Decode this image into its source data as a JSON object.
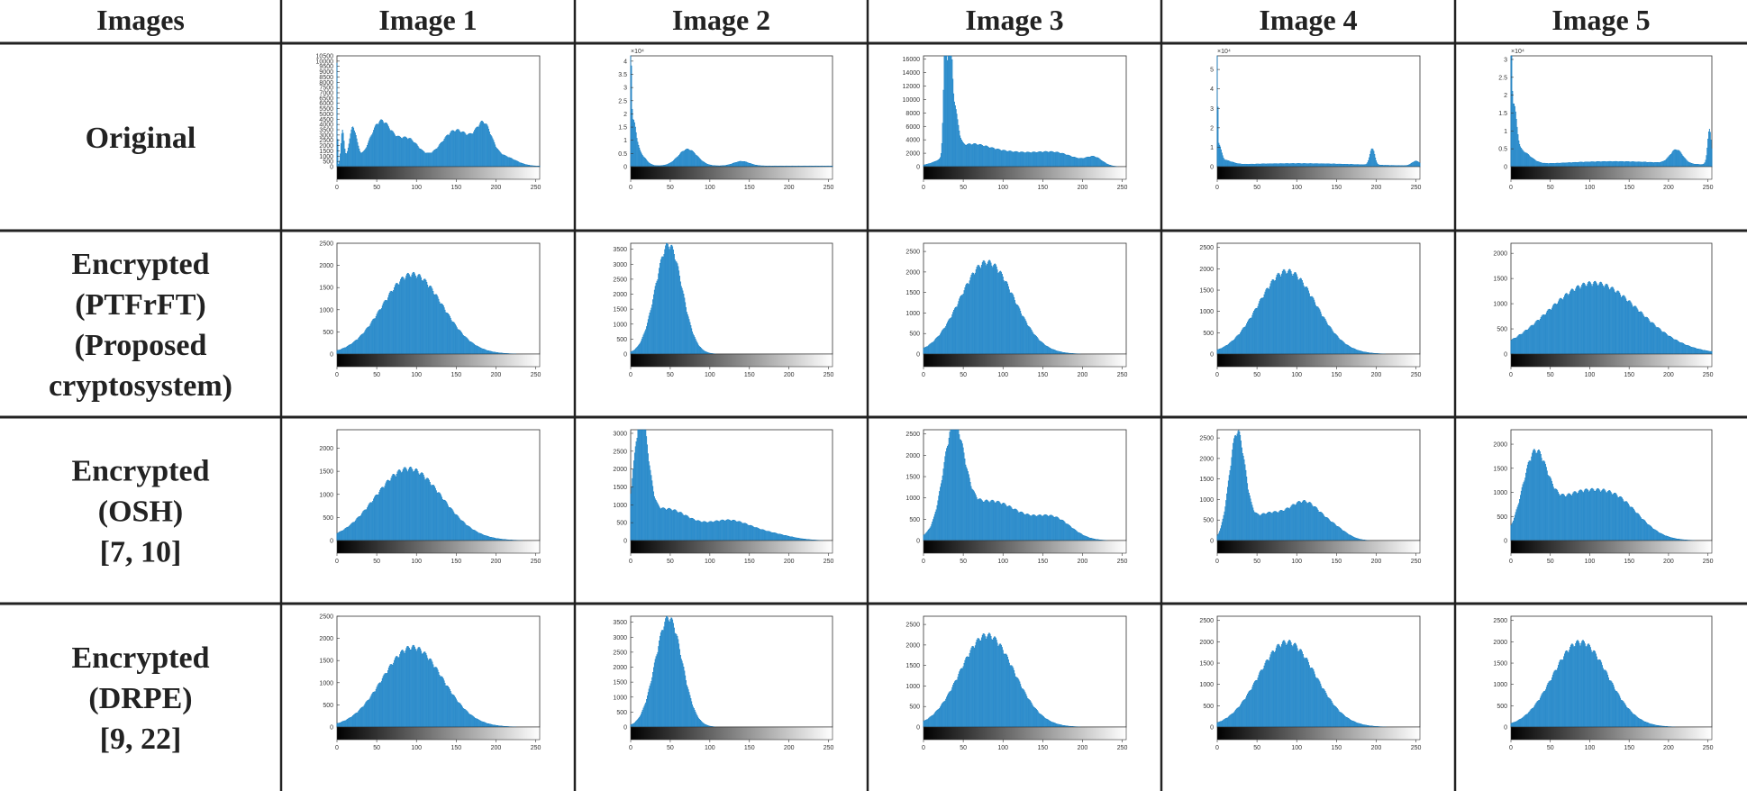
{
  "table": {
    "corner_label": "Images",
    "columns": [
      "Image 1",
      "Image 2",
      "Image 3",
      "Image 4",
      "Image 5"
    ],
    "rows": [
      {
        "label": [
          "Original"
        ]
      },
      {
        "label": [
          "Encrypted",
          "(PTFrFT)",
          "(Proposed",
          "cryptosystem)"
        ]
      },
      {
        "label": [
          "Encrypted",
          "(OSH)",
          "[7, 10]"
        ]
      },
      {
        "label": [
          "Encrypted",
          "(DRPE)",
          "[9, 22]"
        ]
      }
    ]
  },
  "colors": {
    "bar": "#0072BD",
    "bar_fill": "#4DA2D8",
    "text": "#222222",
    "rule": "#222222",
    "axis": "#333333"
  },
  "histogram_axis": {
    "x_ticks": [
      0,
      50,
      100,
      150,
      200,
      250
    ],
    "x_min": 0,
    "x_max": 255,
    "colorbar": "grayscale"
  },
  "chart_data": [
    {
      "row": 0,
      "col": 0,
      "type": "bar",
      "ylim": [
        0,
        10500
      ],
      "y_ticks": [
        0,
        500,
        1000,
        1500,
        2000,
        2500,
        3000,
        3500,
        4000,
        4500,
        5000,
        5500,
        6000,
        6500,
        7000,
        7500,
        8000,
        8500,
        9000,
        9500,
        10000,
        10500
      ],
      "y_tick_labels": [
        "0",
        "500",
        "1000",
        "1500",
        "2000",
        "2500",
        "3000",
        "3500",
        "4000",
        "4500",
        "5000",
        "5500",
        "6000",
        "6500",
        "7000",
        "7500",
        "8000",
        "8500",
        "9000",
        "9500",
        "10000",
        "10500"
      ],
      "exponent_label": "",
      "peaks": [
        {
          "x": 0,
          "y": 10500,
          "w": 0.6
        },
        {
          "x": 7,
          "y": 3500,
          "w": 2
        },
        {
          "x": 20,
          "y": 3600,
          "w": 5
        },
        {
          "x": 55,
          "y": 4300,
          "w": 14
        },
        {
          "x": 90,
          "y": 2500,
          "w": 14
        },
        {
          "x": 150,
          "y": 3500,
          "w": 20
        },
        {
          "x": 185,
          "y": 3300,
          "w": 10
        },
        {
          "x": 210,
          "y": 900,
          "w": 15
        }
      ],
      "base": 50
    },
    {
      "row": 0,
      "col": 1,
      "type": "bar",
      "ylim": [
        0,
        42000
      ],
      "y_ticks": [
        0,
        5000,
        10000,
        15000,
        20000,
        25000,
        30000,
        35000,
        40000
      ],
      "y_tick_labels": [
        "0",
        "0.5",
        "1",
        "1.5",
        "2",
        "2.5",
        "3",
        "3.5",
        "4"
      ],
      "exponent_label": "×10⁴",
      "peaks": [
        {
          "x": 0,
          "y": 42000,
          "w": 1
        },
        {
          "x": 3,
          "y": 14000,
          "w": 4
        },
        {
          "x": 10,
          "y": 5000,
          "w": 8
        },
        {
          "x": 72,
          "y": 6500,
          "w": 12
        },
        {
          "x": 140,
          "y": 1800,
          "w": 10
        }
      ],
      "base": 300
    },
    {
      "row": 0,
      "col": 2,
      "type": "bar",
      "ylim": [
        0,
        16500
      ],
      "y_ticks": [
        0,
        2000,
        4000,
        6000,
        8000,
        10000,
        12000,
        14000,
        16000
      ],
      "y_tick_labels": [
        "0",
        "2000",
        "4000",
        "6000",
        "8000",
        "10000",
        "12000",
        "14000",
        "16000"
      ],
      "exponent_label": "",
      "peaks": [
        {
          "x": 27,
          "y": 16500,
          "w": 2
        },
        {
          "x": 33,
          "y": 15000,
          "w": 2.5
        },
        {
          "x": 38,
          "y": 7000,
          "w": 5
        },
        {
          "x": 55,
          "y": 2800,
          "w": 25
        },
        {
          "x": 110,
          "y": 2000,
          "w": 35
        },
        {
          "x": 170,
          "y": 1700,
          "w": 25
        },
        {
          "x": 215,
          "y": 1200,
          "w": 10
        }
      ],
      "base": 0
    },
    {
      "row": 0,
      "col": 3,
      "type": "bar",
      "ylim": [
        0,
        57000
      ],
      "y_ticks": [
        0,
        10000,
        20000,
        30000,
        40000,
        50000
      ],
      "y_tick_labels": [
        "0",
        "1",
        "2",
        "3",
        "4",
        "5"
      ],
      "exponent_label": "×10⁴",
      "peaks": [
        {
          "x": 0,
          "y": 57000,
          "w": 0.7
        },
        {
          "x": 2,
          "y": 9000,
          "w": 3
        },
        {
          "x": 8,
          "y": 2500,
          "w": 10
        },
        {
          "x": 100,
          "y": 1500,
          "w": 80
        },
        {
          "x": 195,
          "y": 9000,
          "w": 3
        },
        {
          "x": 250,
          "y": 2500,
          "w": 5
        }
      ],
      "base": 200
    },
    {
      "row": 0,
      "col": 4,
      "type": "bar",
      "ylim": [
        0,
        31000
      ],
      "y_ticks": [
        0,
        5000,
        10000,
        15000,
        20000,
        25000,
        30000
      ],
      "y_tick_labels": [
        "0",
        "0.5",
        "1",
        "1.5",
        "2",
        "2.5",
        "3"
      ],
      "exponent_label": "×10⁴",
      "peaks": [
        {
          "x": 0,
          "y": 31000,
          "w": 1
        },
        {
          "x": 3,
          "y": 15000,
          "w": 4
        },
        {
          "x": 12,
          "y": 4000,
          "w": 12
        },
        {
          "x": 130,
          "y": 1200,
          "w": 70
        },
        {
          "x": 210,
          "y": 4000,
          "w": 8
        },
        {
          "x": 252,
          "y": 10000,
          "w": 2.5
        }
      ],
      "base": 300
    },
    {
      "row": 1,
      "col": 0,
      "type": "bar",
      "ylim": [
        0,
        2500
      ],
      "y_ticks": [
        0,
        500,
        1000,
        1500,
        2000,
        2500
      ],
      "y_tick_labels": [
        "0",
        "500",
        "1000",
        "1500",
        "2000",
        "2500"
      ],
      "exponent_label": "",
      "peaks": [
        {
          "x": 95,
          "y": 1850,
          "w": 38
        }
      ],
      "base": 0
    },
    {
      "row": 1,
      "col": 1,
      "type": "bar",
      "ylim": [
        0,
        3700
      ],
      "y_ticks": [
        0,
        500,
        1000,
        1500,
        2000,
        2500,
        3000,
        3500
      ],
      "y_tick_labels": [
        "0",
        "500",
        "1000",
        "1500",
        "2000",
        "2500",
        "3000",
        "3500"
      ],
      "exponent_label": "",
      "peaks": [
        {
          "x": 48,
          "y": 3750,
          "w": 17
        }
      ],
      "base": 0
    },
    {
      "row": 1,
      "col": 2,
      "type": "bar",
      "ylim": [
        0,
        2700
      ],
      "y_ticks": [
        0,
        500,
        1000,
        1500,
        2000,
        2500
      ],
      "y_tick_labels": [
        "0",
        "500",
        "1000",
        "1500",
        "2000",
        "2500"
      ],
      "exponent_label": "",
      "peaks": [
        {
          "x": 80,
          "y": 2300,
          "w": 34
        }
      ],
      "base": 0
    },
    {
      "row": 1,
      "col": 3,
      "type": "bar",
      "ylim": [
        0,
        2600
      ],
      "y_ticks": [
        0,
        500,
        1000,
        1500,
        2000,
        2500
      ],
      "y_tick_labels": [
        "0",
        "500",
        "1000",
        "1500",
        "2000",
        "2500"
      ],
      "exponent_label": "",
      "peaks": [
        {
          "x": 88,
          "y": 2000,
          "w": 36
        }
      ],
      "base": 0
    },
    {
      "row": 1,
      "col": 4,
      "type": "bar",
      "ylim": [
        0,
        2200
      ],
      "y_ticks": [
        0,
        500,
        1000,
        1500,
        2000
      ],
      "y_tick_labels": [
        "0",
        "500",
        "1000",
        "1500",
        "2000"
      ],
      "exponent_label": "",
      "peaks": [
        {
          "x": 105,
          "y": 1450,
          "w": 58
        }
      ],
      "base": 0
    },
    {
      "row": 2,
      "col": 0,
      "type": "bar",
      "ylim": [
        0,
        2400
      ],
      "y_ticks": [
        0,
        500,
        1000,
        1500,
        2000
      ],
      "y_tick_labels": [
        "0",
        "500",
        "1000",
        "1500",
        "2000"
      ],
      "exponent_label": "",
      "peaks": [
        {
          "x": 90,
          "y": 1600,
          "w": 42
        }
      ],
      "base": 0
    },
    {
      "row": 2,
      "col": 1,
      "type": "bar",
      "ylim": [
        0,
        3100
      ],
      "y_ticks": [
        0,
        500,
        1000,
        1500,
        2000,
        2500,
        3000
      ],
      "y_tick_labels": [
        "0",
        "500",
        "1000",
        "1500",
        "2000",
        "2500",
        "3000"
      ],
      "exponent_label": "",
      "peaks": [
        {
          "x": 13,
          "y": 3100,
          "w": 9
        },
        {
          "x": 45,
          "y": 900,
          "w": 30
        },
        {
          "x": 125,
          "y": 550,
          "w": 28
        },
        {
          "x": 180,
          "y": 150,
          "w": 25
        }
      ],
      "base": 0
    },
    {
      "row": 2,
      "col": 2,
      "type": "bar",
      "ylim": [
        0,
        2600
      ],
      "y_ticks": [
        0,
        500,
        1000,
        1500,
        2000,
        2500
      ],
      "y_tick_labels": [
        "0",
        "500",
        "1000",
        "1500",
        "2000",
        "2500"
      ],
      "exponent_label": "",
      "peaks": [
        {
          "x": 38,
          "y": 2350,
          "w": 13
        },
        {
          "x": 85,
          "y": 950,
          "w": 40
        },
        {
          "x": 165,
          "y": 450,
          "w": 22
        }
      ],
      "base": 0
    },
    {
      "row": 2,
      "col": 3,
      "type": "bar",
      "ylim": [
        0,
        2700
      ],
      "y_ticks": [
        0,
        500,
        1000,
        1500,
        2000,
        2500
      ],
      "y_tick_labels": [
        "0",
        "500",
        "1000",
        "1500",
        "2000",
        "2500"
      ],
      "exponent_label": "",
      "peaks": [
        {
          "x": 25,
          "y": 2600,
          "w": 10
        },
        {
          "x": 60,
          "y": 600,
          "w": 20
        },
        {
          "x": 110,
          "y": 950,
          "w": 22
        },
        {
          "x": 150,
          "y": 200,
          "w": 15
        }
      ],
      "base": 0
    },
    {
      "row": 2,
      "col": 4,
      "type": "bar",
      "ylim": [
        0,
        2300
      ],
      "y_ticks": [
        0,
        500,
        1000,
        1500,
        2000
      ],
      "y_tick_labels": [
        "0",
        "500",
        "1000",
        "1500",
        "2000"
      ],
      "exponent_label": "",
      "peaks": [
        {
          "x": 30,
          "y": 1700,
          "w": 16
        },
        {
          "x": 75,
          "y": 750,
          "w": 28
        },
        {
          "x": 130,
          "y": 900,
          "w": 32
        }
      ],
      "base": 0
    },
    {
      "row": 3,
      "col": 0,
      "type": "bar",
      "ylim": [
        0,
        2500
      ],
      "y_ticks": [
        0,
        500,
        1000,
        1500,
        2000,
        2500
      ],
      "y_tick_labels": [
        "0",
        "500",
        "1000",
        "1500",
        "2000",
        "2500"
      ],
      "exponent_label": "",
      "peaks": [
        {
          "x": 95,
          "y": 1850,
          "w": 38
        }
      ],
      "base": 0
    },
    {
      "row": 3,
      "col": 1,
      "type": "bar",
      "ylim": [
        0,
        3700
      ],
      "y_ticks": [
        0,
        500,
        1000,
        1500,
        2000,
        2500,
        3000,
        3500
      ],
      "y_tick_labels": [
        "0",
        "500",
        "1000",
        "1500",
        "2000",
        "2500",
        "3000",
        "3500"
      ],
      "exponent_label": "",
      "peaks": [
        {
          "x": 48,
          "y": 3750,
          "w": 17
        }
      ],
      "base": 0
    },
    {
      "row": 3,
      "col": 2,
      "type": "bar",
      "ylim": [
        0,
        2700
      ],
      "y_ticks": [
        0,
        500,
        1000,
        1500,
        2000,
        2500
      ],
      "y_tick_labels": [
        "0",
        "500",
        "1000",
        "1500",
        "2000",
        "2500"
      ],
      "exponent_label": "",
      "peaks": [
        {
          "x": 80,
          "y": 2300,
          "w": 34
        }
      ],
      "base": 0
    },
    {
      "row": 3,
      "col": 3,
      "type": "bar",
      "ylim": [
        0,
        2600
      ],
      "y_ticks": [
        0,
        500,
        1000,
        1500,
        2000,
        2500
      ],
      "y_tick_labels": [
        "0",
        "500",
        "1000",
        "1500",
        "2000",
        "2500"
      ],
      "exponent_label": "",
      "peaks": [
        {
          "x": 88,
          "y": 2050,
          "w": 36
        }
      ],
      "base": 0
    },
    {
      "row": 3,
      "col": 4,
      "type": "bar",
      "ylim": [
        0,
        2600
      ],
      "y_ticks": [
        0,
        500,
        1000,
        1500,
        2000,
        2500
      ],
      "y_tick_labels": [
        "0",
        "500",
        "1000",
        "1500",
        "2000",
        "2500"
      ],
      "exponent_label": "",
      "peaks": [
        {
          "x": 88,
          "y": 2050,
          "w": 35
        }
      ],
      "base": 0
    }
  ]
}
